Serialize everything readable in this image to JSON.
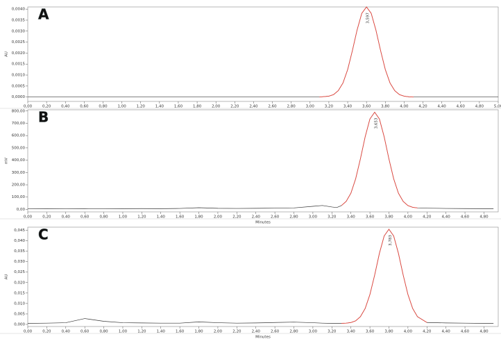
{
  "chart_data": [
    {
      "type": "line",
      "title": "A",
      "ylabel": "AU",
      "peak_label": "3,597",
      "x": [
        0,
        0.2,
        0.4,
        0.6,
        0.8,
        1.0,
        1.2,
        1.4,
        1.6,
        1.8,
        2.0,
        2.2,
        2.4,
        2.6,
        2.8,
        3.0,
        3.1,
        3.2,
        3.25,
        3.3,
        3.35,
        3.4,
        3.45,
        3.5,
        3.55,
        3.6,
        3.65,
        3.7,
        3.75,
        3.8,
        3.85,
        3.9,
        3.95,
        4.0,
        4.05,
        4.1,
        4.2,
        4.4,
        4.6,
        4.8,
        5.0
      ],
      "series": [
        {
          "color": "#333333",
          "values": [
            0,
            0,
            0,
            0,
            0,
            0,
            0,
            0,
            0,
            0,
            0,
            0,
            0,
            0,
            0,
            0,
            0,
            4e-05,
            0.00011,
            0.00029,
            0.00064,
            0.00125,
            0.00211,
            0.00305,
            0.00381,
            0.0041,
            0.00381,
            0.00305,
            0.00211,
            0.00125,
            0.00064,
            0.00029,
            0.00011,
            4e-05,
            1e-05,
            0,
            0,
            0,
            0,
            0,
            0
          ]
        },
        {
          "color": "#e8483f",
          "values": [
            null,
            null,
            null,
            null,
            null,
            null,
            null,
            null,
            null,
            null,
            null,
            null,
            null,
            null,
            null,
            null,
            0,
            4e-05,
            0.00011,
            0.00029,
            0.00064,
            0.00125,
            0.00211,
            0.00305,
            0.00381,
            0.0041,
            0.00381,
            0.00305,
            0.00211,
            0.00125,
            0.00064,
            0.00029,
            0.00011,
            4e-05,
            1e-05,
            0,
            null,
            null,
            null,
            null,
            null
          ]
        }
      ],
      "xlim": [
        0,
        5.0
      ],
      "ylim": [
        -0.0002,
        0.0041
      ],
      "xticks": [
        {
          "value": 0,
          "label": "0,00"
        },
        {
          "value": 0.2,
          "label": "0,20"
        },
        {
          "value": 0.4,
          "label": "0,40"
        },
        {
          "value": 0.6,
          "label": "0,60"
        },
        {
          "value": 0.8,
          "label": "0,80"
        },
        {
          "value": 1.0,
          "label": "1,00"
        },
        {
          "value": 1.2,
          "label": "1,20"
        },
        {
          "value": 1.4,
          "label": "1,40"
        },
        {
          "value": 1.6,
          "label": "1,60"
        },
        {
          "value": 1.8,
          "label": "1,80"
        },
        {
          "value": 2.0,
          "label": "2,00"
        },
        {
          "value": 2.2,
          "label": "2,20"
        },
        {
          "value": 2.4,
          "label": "2,40"
        },
        {
          "value": 2.6,
          "label": "2,60"
        },
        {
          "value": 2.8,
          "label": "2,80"
        },
        {
          "value": 3.0,
          "label": "3,00"
        },
        {
          "value": 3.2,
          "label": "3,20"
        },
        {
          "value": 3.4,
          "label": "3,40"
        },
        {
          "value": 3.6,
          "label": "3,60"
        },
        {
          "value": 3.8,
          "label": "3,80"
        },
        {
          "value": 4.0,
          "label": "4,00"
        },
        {
          "value": 4.2,
          "label": "4,20"
        },
        {
          "value": 4.4,
          "label": "4,40"
        },
        {
          "value": 4.6,
          "label": "4,60"
        },
        {
          "value": 4.8,
          "label": "4,80"
        },
        {
          "value": 5.0,
          "label": "5,00"
        }
      ],
      "yticks": [
        {
          "value": 0,
          "label": "0,0000"
        },
        {
          "value": 0.0005,
          "label": "0,0005"
        },
        {
          "value": 0.001,
          "label": "0,0010"
        },
        {
          "value": 0.0015,
          "label": "0,0015"
        },
        {
          "value": 0.002,
          "label": "0,0020"
        },
        {
          "value": 0.0025,
          "label": "0,0025"
        },
        {
          "value": 0.003,
          "label": "0,0030"
        },
        {
          "value": 0.0035,
          "label": "0,0035"
        },
        {
          "value": 0.004,
          "label": "0,0040"
        }
      ]
    },
    {
      "type": "line",
      "title": "B",
      "ylabel": "mV",
      "xlabel": "Minutes",
      "peak_label": "3,653",
      "x": [
        0,
        0.2,
        0.4,
        0.6,
        0.8,
        1.0,
        1.2,
        1.4,
        1.6,
        1.8,
        2.0,
        2.2,
        2.4,
        2.6,
        2.8,
        3.0,
        3.1,
        3.2,
        3.25,
        3.3,
        3.35,
        3.4,
        3.45,
        3.5,
        3.55,
        3.6,
        3.65,
        3.7,
        3.75,
        3.8,
        3.85,
        3.9,
        3.95,
        4.0,
        4.05,
        4.1,
        4.2,
        4.4,
        4.6,
        4.8,
        4.9
      ],
      "series": [
        {
          "color": "#333333",
          "values": [
            5,
            6,
            5,
            6,
            5,
            6,
            7,
            6,
            8,
            14,
            9,
            8,
            9,
            10,
            12,
            25,
            32,
            20,
            15,
            31,
            65,
            132,
            249,
            411,
            590,
            735,
            790,
            735,
            590,
            411,
            249,
            132,
            65,
            31,
            17,
            12,
            10,
            8,
            7,
            6,
            6
          ]
        },
        {
          "color": "#e8483f",
          "values": [
            null,
            null,
            null,
            null,
            null,
            null,
            null,
            null,
            null,
            null,
            null,
            null,
            null,
            null,
            null,
            null,
            null,
            null,
            null,
            31,
            65,
            132,
            249,
            411,
            590,
            735,
            790,
            735,
            590,
            411,
            249,
            132,
            65,
            31,
            17,
            12,
            null,
            null,
            null,
            null,
            null
          ]
        }
      ],
      "xlim": [
        0,
        4.95
      ],
      "ylim": [
        -20,
        810
      ],
      "xticks": [
        {
          "value": 0,
          "label": "0,00"
        },
        {
          "value": 0.2,
          "label": "0,20"
        },
        {
          "value": 0.4,
          "label": "0,40"
        },
        {
          "value": 0.6,
          "label": "0,60"
        },
        {
          "value": 0.8,
          "label": "0,80"
        },
        {
          "value": 1.0,
          "label": "1,00"
        },
        {
          "value": 1.2,
          "label": "1,20"
        },
        {
          "value": 1.4,
          "label": "1,40"
        },
        {
          "value": 1.6,
          "label": "1,60"
        },
        {
          "value": 1.8,
          "label": "1,80"
        },
        {
          "value": 2.0,
          "label": "2,00"
        },
        {
          "value": 2.2,
          "label": "2,20"
        },
        {
          "value": 2.4,
          "label": "2,40"
        },
        {
          "value": 2.6,
          "label": "2,60"
        },
        {
          "value": 2.8,
          "label": "2,80"
        },
        {
          "value": 3.0,
          "label": "3,00"
        },
        {
          "value": 3.2,
          "label": "3,20"
        },
        {
          "value": 3.4,
          "label": "3,40"
        },
        {
          "value": 3.6,
          "label": "3,60"
        },
        {
          "value": 3.8,
          "label": "3,80"
        },
        {
          "value": 4.0,
          "label": "4,00"
        },
        {
          "value": 4.2,
          "label": "4,20"
        },
        {
          "value": 4.4,
          "label": "4,40"
        },
        {
          "value": 4.6,
          "label": "4,60"
        },
        {
          "value": 4.8,
          "label": "4,80"
        }
      ],
      "yticks": [
        {
          "value": 0,
          "label": "0,00"
        },
        {
          "value": 100,
          "label": "100,00"
        },
        {
          "value": 200,
          "label": "200,00"
        },
        {
          "value": 300,
          "label": "300,00"
        },
        {
          "value": 400,
          "label": "400,00"
        },
        {
          "value": 500,
          "label": "500,00"
        },
        {
          "value": 600,
          "label": "600,00"
        },
        {
          "value": 700,
          "label": "700,00"
        },
        {
          "value": 800,
          "label": "800,00"
        }
      ]
    },
    {
      "type": "line",
      "title": "C",
      "ylabel": "AU",
      "xlabel": "Minutes",
      "peak_label": "3,783",
      "x": [
        0,
        0.2,
        0.4,
        0.6,
        0.8,
        1.0,
        1.2,
        1.4,
        1.6,
        1.8,
        2.0,
        2.2,
        2.4,
        2.6,
        2.8,
        3.0,
        3.1,
        3.2,
        3.25,
        3.3,
        3.35,
        3.4,
        3.45,
        3.5,
        3.55,
        3.6,
        3.65,
        3.7,
        3.75,
        3.8,
        3.85,
        3.9,
        3.95,
        4.0,
        4.05,
        4.1,
        4.2,
        4.4,
        4.6,
        4.8,
        4.9
      ],
      "series": [
        {
          "color": "#333333",
          "values": [
            0.0005,
            0.0006,
            0.0008,
            0.0028,
            0.0015,
            0.0008,
            0.0007,
            0.0006,
            0.0006,
            0.0012,
            0.0008,
            0.0006,
            0.0007,
            0.0009,
            0.0011,
            0.0008,
            0.0006,
            0.0005,
            0.0005,
            0.0005,
            0.0006,
            0.0009,
            0.0017,
            0.0037,
            0.0076,
            0.0143,
            0.0236,
            0.034,
            0.0423,
            0.0455,
            0.0423,
            0.034,
            0.0236,
            0.0143,
            0.0076,
            0.0037,
            0.0009,
            0.0007,
            0.0006,
            0.0005,
            0.0005
          ]
        },
        {
          "color": "#e8483f",
          "values": [
            null,
            null,
            null,
            null,
            null,
            null,
            null,
            null,
            null,
            null,
            null,
            null,
            null,
            null,
            null,
            null,
            null,
            null,
            null,
            0.0005,
            0.0006,
            0.0009,
            0.0017,
            0.0037,
            0.0076,
            0.0143,
            0.0236,
            0.034,
            0.0423,
            0.0455,
            0.0423,
            0.034,
            0.0236,
            0.0143,
            0.0076,
            0.0037,
            0.0009,
            null,
            null,
            null,
            null
          ]
        }
      ],
      "xlim": [
        0,
        4.95
      ],
      "ylim": [
        -0.001,
        0.0465
      ],
      "xticks": [
        {
          "value": 0,
          "label": "0,00"
        },
        {
          "value": 0.2,
          "label": "0,20"
        },
        {
          "value": 0.4,
          "label": "0,40"
        },
        {
          "value": 0.6,
          "label": "0,60"
        },
        {
          "value": 0.8,
          "label": "0,80"
        },
        {
          "value": 1.0,
          "label": "1,00"
        },
        {
          "value": 1.2,
          "label": "1,20"
        },
        {
          "value": 1.4,
          "label": "1,40"
        },
        {
          "value": 1.6,
          "label": "1,60"
        },
        {
          "value": 1.8,
          "label": "1,80"
        },
        {
          "value": 2.0,
          "label": "2,00"
        },
        {
          "value": 2.2,
          "label": "2,20"
        },
        {
          "value": 2.4,
          "label": "2,40"
        },
        {
          "value": 2.6,
          "label": "2,60"
        },
        {
          "value": 2.8,
          "label": "2,80"
        },
        {
          "value": 3.0,
          "label": "3,00"
        },
        {
          "value": 3.2,
          "label": "3,20"
        },
        {
          "value": 3.4,
          "label": "3,40"
        },
        {
          "value": 3.6,
          "label": "3,60"
        },
        {
          "value": 3.8,
          "label": "3,80"
        },
        {
          "value": 4.0,
          "label": "4,00"
        },
        {
          "value": 4.2,
          "label": "4,20"
        },
        {
          "value": 4.4,
          "label": "4,40"
        },
        {
          "value": 4.6,
          "label": "4,60"
        },
        {
          "value": 4.8,
          "label": "4,80"
        }
      ],
      "yticks": [
        {
          "value": 0,
          "label": "0,000"
        },
        {
          "value": 0.005,
          "label": "0,005"
        },
        {
          "value": 0.01,
          "label": "0,010"
        },
        {
          "value": 0.015,
          "label": "0,015"
        },
        {
          "value": 0.02,
          "label": "0,020"
        },
        {
          "value": 0.025,
          "label": "0,025"
        },
        {
          "value": 0.03,
          "label": "0,030"
        },
        {
          "value": 0.035,
          "label": "0,035"
        },
        {
          "value": 0.04,
          "label": "0,040"
        },
        {
          "value": 0.045,
          "label": "0,045"
        }
      ]
    }
  ]
}
